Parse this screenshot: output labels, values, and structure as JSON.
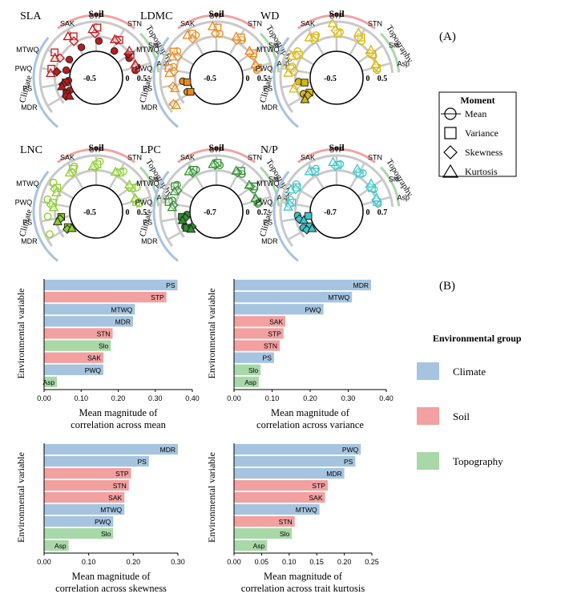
{
  "panel_labels": {
    "a": "(A)",
    "b": "(B)"
  },
  "ring_labels": {
    "soil": "Soil",
    "topography": "Topography",
    "climate": "Climate"
  },
  "variables_order": [
    "MDR",
    "PS",
    "PWQ",
    "MTWQ",
    "SAK",
    "STP",
    "STN",
    "Slo",
    "Asp"
  ],
  "moment_legend": {
    "title": "Moment",
    "items": [
      {
        "name": "Mean",
        "shape": "circle"
      },
      {
        "name": "Variance",
        "shape": "square"
      },
      {
        "name": "Skewness",
        "shape": "diamond"
      },
      {
        "name": "Kurtosis",
        "shape": "triangle"
      }
    ]
  },
  "group_legend": {
    "title": "Environmental group",
    "items": [
      {
        "name": "Climate",
        "color": "#a6c4e0"
      },
      {
        "name": "Soil",
        "color": "#f2a0a0"
      },
      {
        "name": "Topography",
        "color": "#a8d8a8"
      }
    ]
  },
  "y_axis_label": "Environmental variable",
  "chart_data": [
    {
      "type": "radial",
      "title": "SLA",
      "color": "#c0181c",
      "inner_label": "-0.5",
      "zero_label": "0",
      "outer_label": "0.5",
      "range": [
        -0.5,
        0.5
      ],
      "series": [
        {
          "moment": "Mean",
          "values": [
            -0.4,
            -0.45,
            -0.35,
            -0.3,
            -0.25,
            -0.15,
            -0.3,
            -0.1,
            -0.05
          ]
        },
        {
          "moment": "Variance",
          "values": [
            -0.25,
            -0.35,
            0.15,
            0.25,
            0.2,
            0.3,
            0.1,
            0.0,
            0.0
          ]
        },
        {
          "moment": "Skewness",
          "values": [
            -0.2,
            -0.25,
            -0.05,
            0.0,
            0.05,
            0.1,
            0.05,
            -0.05,
            0.0
          ]
        },
        {
          "moment": "Kurtosis",
          "values": [
            -0.3,
            -0.2,
            0.15,
            0.15,
            0.3,
            0.25,
            0.05,
            0.05,
            0.0
          ]
        }
      ]
    },
    {
      "type": "radial",
      "title": "LDMC",
      "color": "#e8891b",
      "inner_label": "-0.5",
      "zero_label": "0",
      "outer_label": "0.5",
      "range": [
        -0.5,
        0.5
      ],
      "series": [
        {
          "moment": "Mean",
          "values": [
            -0.3,
            -0.25,
            0.1,
            0.2,
            0.2,
            0.1,
            0.15,
            0.05,
            0.0
          ]
        },
        {
          "moment": "Variance",
          "values": [
            -0.4,
            -0.4,
            0.25,
            0.3,
            0.3,
            0.3,
            0.2,
            0.1,
            0.05
          ]
        },
        {
          "moment": "Skewness",
          "values": [
            0.3,
            0.1,
            0.05,
            0.1,
            0.15,
            0.1,
            0.05,
            0.0,
            0.0
          ]
        },
        {
          "moment": "Kurtosis",
          "values": [
            0.25,
            0.05,
            0.2,
            0.25,
            0.35,
            0.35,
            0.15,
            0.05,
            0.0
          ]
        }
      ]
    },
    {
      "type": "radial",
      "title": "WD",
      "color": "#d8b80a",
      "inner_label": "-0.5",
      "zero_label": "0",
      "outer_label": "0.5",
      "range": [
        -0.5,
        0.5
      ],
      "series": [
        {
          "moment": "Mean",
          "values": [
            -0.15,
            -0.1,
            0.15,
            0.2,
            0.2,
            0.15,
            0.1,
            0.05,
            0.0
          ]
        },
        {
          "moment": "Variance",
          "values": [
            -0.35,
            -0.3,
            0.2,
            0.1,
            0.15,
            0.1,
            0.2,
            0.05,
            0.0
          ]
        },
        {
          "moment": "Skewness",
          "values": [
            -0.25,
            0.0,
            0.05,
            0.15,
            0.1,
            0.2,
            0.15,
            0.0,
            0.0
          ]
        },
        {
          "moment": "Kurtosis",
          "values": [
            -0.1,
            0.1,
            0.25,
            0.3,
            0.25,
            0.45,
            0.3,
            0.1,
            0.0
          ]
        }
      ]
    },
    {
      "type": "radial",
      "title": "LNC",
      "color": "#8ccf2a",
      "inner_label": "-0.5",
      "zero_label": "0",
      "outer_label": "0.5",
      "range": [
        -0.5,
        0.5
      ],
      "series": [
        {
          "moment": "Mean",
          "values": [
            0.35,
            0.25,
            0.3,
            0.35,
            0.3,
            0.3,
            0.25,
            0.2,
            0.1
          ]
        },
        {
          "moment": "Variance",
          "values": [
            -0.3,
            -0.2,
            0.1,
            0.15,
            0.25,
            0.2,
            0.15,
            0.05,
            0.0
          ]
        },
        {
          "moment": "Skewness",
          "values": [
            -0.25,
            -0.15,
            0.15,
            0.2,
            0.15,
            0.1,
            0.1,
            0.0,
            0.0
          ]
        },
        {
          "moment": "Kurtosis",
          "values": [
            -0.4,
            -0.05,
            0.05,
            0.1,
            0.2,
            0.15,
            0.1,
            0.05,
            0.0
          ]
        }
      ]
    },
    {
      "type": "radial",
      "title": "LPC",
      "color": "#2f8f2f",
      "inner_label": "-0.7",
      "zero_label": "0",
      "outer_label": "0.7",
      "range": [
        -0.7,
        0.7
      ],
      "series": [
        {
          "moment": "Mean",
          "values": [
            -0.3,
            -0.55,
            0.2,
            0.3,
            0.25,
            0.25,
            0.2,
            0.1,
            0.05
          ]
        },
        {
          "moment": "Variance",
          "values": [
            -0.35,
            -0.3,
            0.35,
            0.35,
            0.3,
            0.35,
            0.3,
            0.2,
            0.05
          ]
        },
        {
          "moment": "Skewness",
          "values": [
            -0.6,
            -0.45,
            0.1,
            0.15,
            0.2,
            0.25,
            0.15,
            0.05,
            0.0
          ]
        },
        {
          "moment": "Kurtosis",
          "values": [
            -0.5,
            -0.3,
            0.15,
            0.25,
            0.35,
            0.3,
            0.2,
            0.05,
            0.0
          ]
        }
      ]
    },
    {
      "type": "radial",
      "title": "N/P",
      "color": "#3cc6c8",
      "inner_label": "-0.7",
      "zero_label": "0",
      "outer_label": "0.7",
      "range": [
        -0.7,
        0.7
      ],
      "series": [
        {
          "moment": "Mean",
          "values": [
            -0.2,
            -0.1,
            0.3,
            0.35,
            0.3,
            0.3,
            0.25,
            0.1,
            0.05
          ]
        },
        {
          "moment": "Variance",
          "values": [
            -0.5,
            -0.6,
            0.2,
            0.25,
            0.2,
            0.25,
            0.15,
            0.05,
            0.0
          ]
        },
        {
          "moment": "Skewness",
          "values": [
            -0.3,
            -0.15,
            0.3,
            0.25,
            0.25,
            0.2,
            0.15,
            0.0,
            0.0
          ]
        },
        {
          "moment": "Kurtosis",
          "values": [
            -0.55,
            -0.35,
            0.35,
            0.45,
            0.35,
            0.4,
            0.3,
            0.15,
            0.05
          ]
        }
      ]
    },
    {
      "type": "bar",
      "orientation": "horizontal",
      "xlabel": "Mean magnitude of correlation across mean",
      "ylabel": "Environmental variable",
      "xlim": [
        0,
        0.4
      ],
      "xticks": [
        "0.00",
        "0.10",
        "0.20",
        "0.30",
        "0.40"
      ],
      "bars": [
        {
          "name": "PS",
          "value": 0.36,
          "group": "Climate"
        },
        {
          "name": "STP",
          "value": 0.33,
          "group": "Soil"
        },
        {
          "name": "MTWQ",
          "value": 0.245,
          "group": "Climate"
        },
        {
          "name": "MDR",
          "value": 0.24,
          "group": "Climate"
        },
        {
          "name": "STN",
          "value": 0.185,
          "group": "Soil"
        },
        {
          "name": "Slo",
          "value": 0.18,
          "group": "Topography"
        },
        {
          "name": "SAK",
          "value": 0.16,
          "group": "Soil"
        },
        {
          "name": "PWQ",
          "value": 0.16,
          "group": "Climate"
        },
        {
          "name": "Asp",
          "value": 0.035,
          "group": "Topography"
        }
      ]
    },
    {
      "type": "bar",
      "orientation": "horizontal",
      "xlabel": "Mean magnitude of correlation across variance",
      "ylabel": "Environmental variable",
      "xlim": [
        0,
        0.4
      ],
      "xticks": [
        "0.00",
        "0.10",
        "0.20",
        "0.30",
        "0.40"
      ],
      "bars": [
        {
          "name": "MDR",
          "value": 0.36,
          "group": "Climate"
        },
        {
          "name": "MTWQ",
          "value": 0.31,
          "group": "Climate"
        },
        {
          "name": "PWQ",
          "value": 0.235,
          "group": "Climate"
        },
        {
          "name": "SAK",
          "value": 0.135,
          "group": "Soil"
        },
        {
          "name": "STP",
          "value": 0.13,
          "group": "Soil"
        },
        {
          "name": "STN",
          "value": 0.12,
          "group": "Soil"
        },
        {
          "name": "PS",
          "value": 0.105,
          "group": "Climate"
        },
        {
          "name": "Slo",
          "value": 0.07,
          "group": "Topography"
        },
        {
          "name": "Asp",
          "value": 0.065,
          "group": "Topography"
        }
      ]
    },
    {
      "type": "bar",
      "orientation": "horizontal",
      "xlabel": "Mean magnitude of correlation across skewness",
      "ylabel": "Environmental variable",
      "xlim": [
        0,
        0.3
      ],
      "xticks": [
        "0.00",
        "0.10",
        "0.20",
        "0.30"
      ],
      "bars": [
        {
          "name": "MDR",
          "value": 0.3,
          "group": "Climate"
        },
        {
          "name": "PS",
          "value": 0.235,
          "group": "Climate"
        },
        {
          "name": "STP",
          "value": 0.195,
          "group": "Soil"
        },
        {
          "name": "STN",
          "value": 0.19,
          "group": "Soil"
        },
        {
          "name": "SAK",
          "value": 0.18,
          "group": "Soil"
        },
        {
          "name": "MTWQ",
          "value": 0.18,
          "group": "Climate"
        },
        {
          "name": "PWQ",
          "value": 0.155,
          "group": "Climate"
        },
        {
          "name": "Slo",
          "value": 0.155,
          "group": "Topography"
        },
        {
          "name": "Asp",
          "value": 0.055,
          "group": "Topography"
        }
      ]
    },
    {
      "type": "bar",
      "orientation": "horizontal",
      "xlabel": "Mean magnitude of correlation across trait kurtosis",
      "ylabel": "Environmental variable",
      "xlim": [
        0,
        0.25
      ],
      "xticks": [
        "0.00",
        "0.05",
        "0.10",
        "0.15",
        "0.20",
        "0.25"
      ],
      "bars": [
        {
          "name": "PWQ",
          "value": 0.23,
          "group": "Climate"
        },
        {
          "name": "PS",
          "value": 0.22,
          "group": "Climate"
        },
        {
          "name": "MDR",
          "value": 0.2,
          "group": "Climate"
        },
        {
          "name": "STP",
          "value": 0.17,
          "group": "Soil"
        },
        {
          "name": "SAK",
          "value": 0.165,
          "group": "Soil"
        },
        {
          "name": "MTWQ",
          "value": 0.155,
          "group": "Climate"
        },
        {
          "name": "STN",
          "value": 0.11,
          "group": "Soil"
        },
        {
          "name": "Slo",
          "value": 0.105,
          "group": "Topography"
        },
        {
          "name": "Asp",
          "value": 0.06,
          "group": "Topography"
        }
      ]
    }
  ]
}
